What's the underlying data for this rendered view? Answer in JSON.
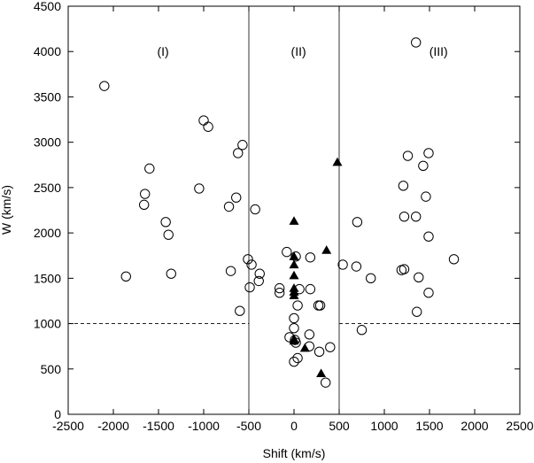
{
  "chart_data": {
    "type": "scatter",
    "xlabel": "Shift (km/s)",
    "ylabel": "W (km/s)",
    "xlim": [
      -2500,
      2500
    ],
    "ylim": [
      0,
      4500
    ],
    "x_ticks": [
      -2500,
      -2000,
      -1500,
      -1000,
      -500,
      0,
      500,
      1000,
      1500,
      2000,
      2500
    ],
    "y_ticks": [
      0,
      500,
      1000,
      1500,
      2000,
      2500,
      3000,
      3500,
      4000,
      4500
    ],
    "grid": false,
    "vertical_lines": [
      -500,
      500
    ],
    "dashed_threshold": {
      "y": 1000,
      "segments": [
        [
          -2500,
          -500
        ],
        [
          500,
          2500
        ]
      ]
    },
    "region_labels": [
      {
        "text": "(I)",
        "x": -1450,
        "y": 4000
      },
      {
        "text": "(II)",
        "x": 50,
        "y": 4000
      },
      {
        "text": "(III)",
        "x": 1600,
        "y": 4000
      }
    ],
    "series": [
      {
        "marker": "open-circle",
        "points": [
          [
            -2100,
            3620
          ],
          [
            -1860,
            1520
          ],
          [
            -1600,
            2710
          ],
          [
            -1650,
            2430
          ],
          [
            -1660,
            2310
          ],
          [
            -1420,
            2120
          ],
          [
            -1390,
            1980
          ],
          [
            -1360,
            1550
          ],
          [
            -1000,
            3240
          ],
          [
            -950,
            3170
          ],
          [
            -1050,
            2490
          ],
          [
            -720,
            2290
          ],
          [
            -700,
            1580
          ],
          [
            -640,
            2390
          ],
          [
            -620,
            2880
          ],
          [
            -570,
            2970
          ],
          [
            -600,
            1140
          ],
          [
            -430,
            2260
          ],
          [
            -510,
            1710
          ],
          [
            -470,
            1650
          ],
          [
            -490,
            1400
          ],
          [
            -380,
            1550
          ],
          [
            -390,
            1470
          ],
          [
            -160,
            1390
          ],
          [
            -160,
            1340
          ],
          [
            -80,
            1790
          ],
          [
            20,
            1740
          ],
          [
            180,
            1730
          ],
          [
            60,
            1380
          ],
          [
            180,
            1380
          ],
          [
            270,
            1200
          ],
          [
            290,
            1200
          ],
          [
            40,
            1200
          ],
          [
            0,
            1060
          ],
          [
            0,
            950
          ],
          [
            -50,
            850
          ],
          [
            10,
            820
          ],
          [
            20,
            790
          ],
          [
            170,
            880
          ],
          [
            170,
            750
          ],
          [
            280,
            690
          ],
          [
            400,
            740
          ],
          [
            40,
            620
          ],
          [
            0,
            580
          ],
          [
            350,
            350
          ],
          [
            540,
            1650
          ],
          [
            690,
            1630
          ],
          [
            700,
            2120
          ],
          [
            850,
            1500
          ],
          [
            750,
            930
          ],
          [
            1350,
            4100
          ],
          [
            1260,
            2850
          ],
          [
            1490,
            2880
          ],
          [
            1430,
            2740
          ],
          [
            1210,
            2520
          ],
          [
            1460,
            2400
          ],
          [
            1220,
            2180
          ],
          [
            1350,
            2180
          ],
          [
            1490,
            1960
          ],
          [
            1190,
            1590
          ],
          [
            1220,
            1600
          ],
          [
            1380,
            1510
          ],
          [
            1770,
            1710
          ],
          [
            1490,
            1340
          ],
          [
            1360,
            1130
          ]
        ]
      },
      {
        "marker": "filled-triangle",
        "points": [
          [
            480,
            2780
          ],
          [
            0,
            2130
          ],
          [
            0,
            1740
          ],
          [
            360,
            1810
          ],
          [
            0,
            1650
          ],
          [
            0,
            1530
          ],
          [
            0,
            1390
          ],
          [
            0,
            1350
          ],
          [
            0,
            1310
          ],
          [
            0,
            830
          ],
          [
            0,
            810
          ],
          [
            120,
            730
          ],
          [
            300,
            450
          ]
        ]
      }
    ]
  }
}
